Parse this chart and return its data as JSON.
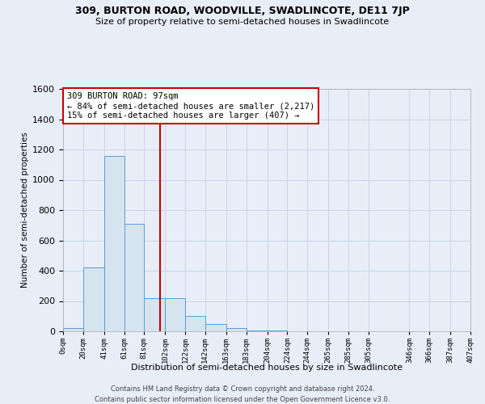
{
  "title": "309, BURTON ROAD, WOODVILLE, SWADLINCOTE, DE11 7JP",
  "subtitle": "Size of property relative to semi-detached houses in Swadlincote",
  "xlabel": "Distribution of semi-detached houses by size in Swadlincote",
  "ylabel": "Number of semi-detached properties",
  "property_size": 97,
  "annotation_title": "309 BURTON ROAD: 97sqm",
  "annotation_line1": "← 84% of semi-detached houses are smaller (2,217)",
  "annotation_line2": "15% of semi-detached houses are larger (407) →",
  "bin_edges": [
    0,
    20,
    41,
    61,
    81,
    102,
    122,
    142,
    163,
    183,
    204,
    224,
    244,
    265,
    285,
    305,
    346,
    366,
    387,
    407
  ],
  "bin_counts": [
    20,
    420,
    1160,
    710,
    220,
    220,
    100,
    50,
    20,
    8,
    4,
    2,
    1,
    0,
    0,
    0,
    0,
    0,
    0
  ],
  "bar_color": "#d6e4f0",
  "bar_edge_color": "#5b9bd5",
  "vline_color": "#cc0000",
  "annotation_box_color": "#ffffff",
  "annotation_box_edge": "#cc0000",
  "grid_color": "#c8d4e8",
  "background_color": "#e8eef8",
  "ylim": [
    0,
    1600
  ],
  "yticks": [
    0,
    200,
    400,
    600,
    800,
    1000,
    1200,
    1400,
    1600
  ],
  "footer1": "Contains HM Land Registry data © Crown copyright and database right 2024.",
  "footer2": "Contains public sector information licensed under the Open Government Licence v3.0."
}
